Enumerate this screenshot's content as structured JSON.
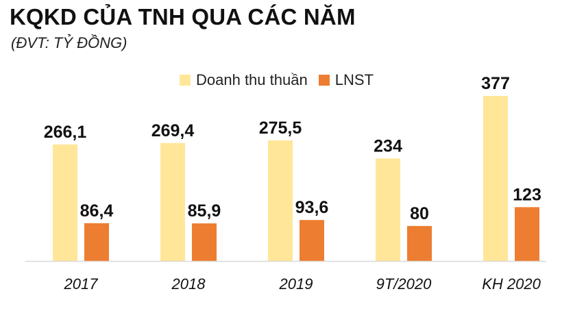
{
  "chart_data": {
    "type": "bar",
    "title": "KQKD CỦA TNH QUA CÁC NĂM",
    "subtitle": "(ĐVT: TỶ ĐỒNG)",
    "categories": [
      "2017",
      "2018",
      "2019",
      "9T/2020",
      "KH 2020"
    ],
    "series": [
      {
        "name": "Doanh thu thuần",
        "color": "#FFE699",
        "values": [
          266.1,
          269.4,
          275.5,
          234,
          377
        ],
        "labels": [
          "266,1",
          "269,4",
          "275,5",
          "234",
          "377"
        ]
      },
      {
        "name": "LNST",
        "color": "#ED7D31",
        "values": [
          86.4,
          85.9,
          93.6,
          80,
          123
        ],
        "labels": [
          "86,4",
          "85,9",
          "93,6",
          "80",
          "123"
        ]
      }
    ],
    "ylim": [
      0,
      377
    ],
    "grid": false,
    "legend_position": "top-right",
    "axis_color": "#D9D9D9"
  }
}
